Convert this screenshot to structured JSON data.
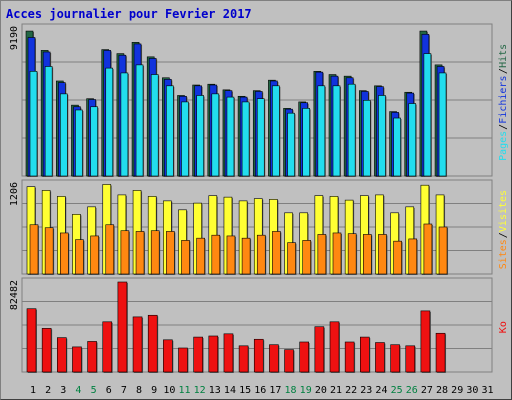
{
  "title": "Acces journalier pour Fevrier 2017",
  "colors": {
    "background": "#c0c0c0",
    "hits": "#226644",
    "files": "#1133dd",
    "pages": "#22ddee",
    "visits": "#ffff33",
    "sites": "#ff8811",
    "kbytes": "#ee1111",
    "title": "#0000cc",
    "weekend_label": "#008040"
  },
  "chart_data": [
    {
      "type": "bar",
      "title": "Acces journalier pour Fevrier 2017",
      "panel": "hits-files-pages",
      "ymax_label": "9190",
      "ymax": 9190,
      "legend": [
        "Pages",
        "/",
        "Fichiers",
        "/",
        "Hits"
      ],
      "categories": [
        "1",
        "2",
        "3",
        "4",
        "5",
        "6",
        "7",
        "8",
        "9",
        "10",
        "11",
        "12",
        "13",
        "14",
        "15",
        "16",
        "17",
        "18",
        "19",
        "20",
        "21",
        "22",
        "23",
        "24",
        "25",
        "26",
        "27",
        "28",
        "29",
        "30",
        "31"
      ],
      "series": [
        {
          "name": "Hits",
          "values": [
            9000,
            7800,
            5900,
            4400,
            4800,
            7850,
            7600,
            8300,
            7400,
            6100,
            5000,
            5650,
            5700,
            5350,
            4950,
            5300,
            5950,
            4200,
            4600,
            6500,
            6300,
            6200,
            5300,
            5600,
            4000,
            5200,
            9000,
            6900,
            0,
            0,
            0
          ]
        },
        {
          "name": "Fichiers",
          "values": [
            8600,
            7700,
            5800,
            4300,
            4750,
            7800,
            7500,
            8200,
            7300,
            6000,
            4950,
            5600,
            5650,
            5300,
            4900,
            5250,
            5900,
            4150,
            4550,
            6450,
            6200,
            6100,
            5250,
            5550,
            3950,
            5150,
            8800,
            6800,
            0,
            0,
            0
          ]
        },
        {
          "name": "Pages",
          "values": [
            6500,
            6800,
            5100,
            4100,
            4300,
            6700,
            6400,
            6900,
            6300,
            5600,
            4600,
            5000,
            5100,
            4900,
            4600,
            4800,
            5600,
            3900,
            4200,
            5600,
            5600,
            5700,
            4700,
            5000,
            3600,
            4500,
            7600,
            6400,
            0,
            0,
            0
          ]
        }
      ]
    },
    {
      "type": "bar",
      "panel": "visites-sites",
      "ymax_label": "1206",
      "ymax": 1206,
      "legend": [
        "Sites",
        "/",
        "Visites"
      ],
      "categories": [
        "1",
        "2",
        "3",
        "4",
        "5",
        "6",
        "7",
        "8",
        "9",
        "10",
        "11",
        "12",
        "13",
        "14",
        "15",
        "16",
        "17",
        "18",
        "19",
        "20",
        "21",
        "22",
        "23",
        "24",
        "25",
        "26",
        "27",
        "28",
        "29",
        "30",
        "31"
      ],
      "series": [
        {
          "name": "Visites",
          "values": [
            1170,
            1120,
            1040,
            800,
            900,
            1200,
            1060,
            1120,
            1040,
            980,
            860,
            950,
            1050,
            1030,
            980,
            1010,
            1000,
            820,
            820,
            1050,
            1040,
            990,
            1050,
            1060,
            820,
            900,
            1190,
            1060,
            0,
            0,
            0
          ]
        },
        {
          "name": "Sites",
          "values": [
            660,
            620,
            550,
            460,
            510,
            660,
            580,
            570,
            580,
            570,
            450,
            480,
            520,
            510,
            480,
            520,
            570,
            420,
            450,
            530,
            550,
            540,
            530,
            530,
            440,
            470,
            670,
            630,
            0,
            0,
            0
          ]
        }
      ]
    },
    {
      "type": "bar",
      "panel": "kbytes",
      "ymax_label": "82482",
      "ymax": 82482,
      "legend": [
        "Ko"
      ],
      "categories": [
        "1",
        "2",
        "3",
        "4",
        "5",
        "6",
        "7",
        "8",
        "9",
        "10",
        "11",
        "12",
        "13",
        "14",
        "15",
        "16",
        "17",
        "18",
        "19",
        "20",
        "21",
        "22",
        "23",
        "24",
        "25",
        "26",
        "27",
        "28",
        "29",
        "30",
        "31"
      ],
      "series": [
        {
          "name": "Ko",
          "values": [
            58000,
            40000,
            31500,
            23000,
            28000,
            46000,
            82482,
            50500,
            52000,
            29500,
            22000,
            32000,
            33000,
            35000,
            24000,
            30000,
            25000,
            20500,
            27500,
            41500,
            46000,
            27500,
            32000,
            27000,
            25000,
            24000,
            56000,
            35500,
            0,
            0,
            0
          ]
        }
      ]
    }
  ]
}
